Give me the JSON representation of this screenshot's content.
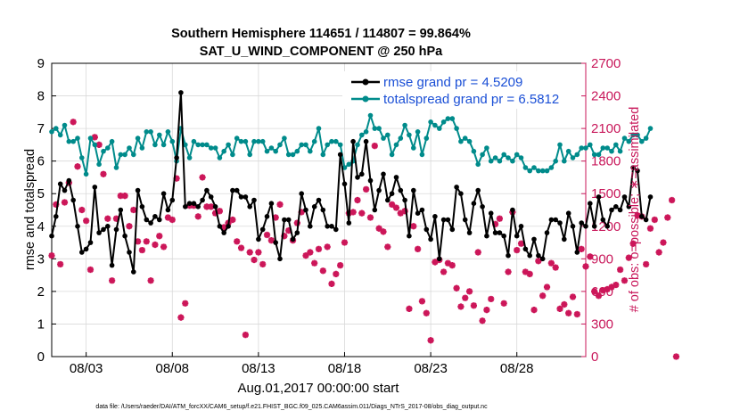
{
  "title_line1": "Southern Hemisphere 114651 / 114807 = 99.864%",
  "title_line2": "SAT_U_WIND_COMPONENT @ 250 hPa",
  "xlabel": "Aug.01,2017 00:00:00 start",
  "ylabel_left": "rmse and totalspread",
  "ylabel_right": "# of obs: o=possible; ∗=assimilated",
  "footer": "data file: /Users/raeder/DAI/ATM_forcXX/CAM6_setup/f.e21.FHIST_BGC.f09_025.CAM6assim.011/Diags_NTrS_2017-08/obs_diag_output.nc",
  "colors": {
    "rmse": "#000000",
    "spread": "#008b8b",
    "obs": "#cc1659",
    "legend_text": "#1a4fd6",
    "right_axis": "#c8175a",
    "grid": "#d9d9d9"
  },
  "chart_data": {
    "type": "line",
    "x_start": "08/01",
    "x_step_days": 0.25,
    "xlim": [
      1.0,
      32.0
    ],
    "x_ticks": [
      3,
      8,
      13,
      18,
      23,
      28
    ],
    "x_tick_labels": [
      "08/03",
      "08/08",
      "08/13",
      "08/18",
      "08/23",
      "08/28"
    ],
    "ylim_left": [
      0,
      9
    ],
    "y_ticks_left": [
      0,
      1,
      2,
      3,
      4,
      5,
      6,
      7,
      8,
      9
    ],
    "ylim_right": [
      0,
      2700
    ],
    "y_ticks_right": [
      0,
      300,
      600,
      900,
      1200,
      1500,
      1800,
      2100,
      2400,
      2700
    ],
    "grid": true,
    "legend_placement": "top-right",
    "series": [
      {
        "name": "rmse grand pr = 4.5209",
        "axis": "left",
        "marker": "filled-circle",
        "values": [
          3.7,
          4.3,
          5.3,
          5.1,
          5.4,
          4.8,
          4.0,
          3.2,
          3.3,
          3.5,
          5.2,
          3.8,
          3.9,
          4.0,
          2.8,
          3.9,
          4.5,
          3.7,
          3.2,
          2.6,
          5.1,
          4.6,
          4.2,
          4.1,
          4.3,
          4.2,
          5.0,
          4.5,
          4.8,
          6.1,
          8.1,
          4.6,
          4.7,
          4.7,
          4.6,
          4.8,
          5.1,
          4.9,
          4.6,
          4.0,
          3.8,
          4.0,
          5.1,
          5.1,
          4.9,
          4.9,
          4.6,
          4.8,
          3.6,
          3.9,
          4.3,
          4.7,
          3.5,
          3.0,
          4.2,
          4.2,
          3.6,
          3.8,
          5.0,
          4.5,
          4.0,
          4.6,
          4.8,
          4.5,
          4.0,
          4.0,
          3.9,
          6.2,
          5.3,
          4.1,
          6.6,
          5.5,
          5.6,
          6.6,
          5.4,
          4.5,
          5.1,
          5.6,
          4.8,
          5.0,
          5.5,
          5.1,
          4.8,
          3.7,
          5.1,
          4.4,
          4.5,
          3.9,
          3.6,
          4.3,
          3.0,
          4.2,
          4.2,
          3.9,
          5.2,
          5.0,
          4.2,
          3.8,
          4.7,
          5.1,
          4.6,
          3.7,
          4.4,
          3.8,
          3.8,
          3.7,
          3.1,
          4.5,
          3.7,
          4.0,
          3.3,
          3.1,
          3.6,
          3.1,
          3.0,
          3.8,
          4.2,
          4.2,
          4.1,
          3.6,
          4.4,
          4.0,
          3.2,
          4.1,
          4.0,
          4.7,
          4.0,
          4.9,
          4.2,
          4.0,
          4.5,
          4.6,
          4.5,
          4.9,
          4.6,
          5.8,
          5.7,
          4.3,
          4.2,
          4.9
        ]
      },
      {
        "name": "totalspread grand pr = 6.5812",
        "axis": "left",
        "marker": "filled-circle",
        "values": [
          6.9,
          7.0,
          6.8,
          7.1,
          6.6,
          6.6,
          6.7,
          6.1,
          5.6,
          6.7,
          6.5,
          5.9,
          6.3,
          6.4,
          6.6,
          5.8,
          6.2,
          6.2,
          6.4,
          6.2,
          6.7,
          6.4,
          6.9,
          6.9,
          6.5,
          6.8,
          6.5,
          6.9,
          6.6,
          6.0,
          7.0,
          6.5,
          6.1,
          6.6,
          6.5,
          6.5,
          6.5,
          6.4,
          6.4,
          6.1,
          6.3,
          6.5,
          6.2,
          6.7,
          6.6,
          6.6,
          6.2,
          6.6,
          6.6,
          6.6,
          6.3,
          6.4,
          6.3,
          6.5,
          6.7,
          6.2,
          6.2,
          6.3,
          6.5,
          6.5,
          6.3,
          6.6,
          7.0,
          6.2,
          6.5,
          6.6,
          6.6,
          6.5,
          5.8,
          5.9,
          6.0,
          6.5,
          6.8,
          6.9,
          7.4,
          7.0,
          7.0,
          6.7,
          6.8,
          6.2,
          6.5,
          6.7,
          7.1,
          6.8,
          6.4,
          6.9,
          6.2,
          6.7,
          7.2,
          7.1,
          7.0,
          7.2,
          7.3,
          7.3,
          7.0,
          6.6,
          6.7,
          6.6,
          6.3,
          5.9,
          6.2,
          6.4,
          6.0,
          6.1,
          6.0,
          6.2,
          6.1,
          6.0,
          6.2,
          6.1,
          5.8,
          5.7,
          5.8,
          5.7,
          5.7,
          5.7,
          5.8,
          6.0,
          6.5,
          6.0,
          6.3,
          6.1,
          6.2,
          6.4,
          6.4,
          6.5,
          6.2,
          6.2,
          6.4,
          6.4,
          6.3,
          6.5,
          6.3,
          6.7,
          6.6,
          6.8,
          6.8,
          6.6,
          6.7,
          7.0
        ]
      },
      {
        "name": "# of obs assimilated",
        "axis": "right",
        "marker": "asterisk",
        "values": [
          930,
          1400,
          850,
          1420,
          1600,
          2160,
          1750,
          1350,
          1250,
          800,
          2020,
          1950,
          1680,
          1270,
          700,
          1270,
          1480,
          1480,
          1200,
          1350,
          1060,
          980,
          1060,
          700,
          1030,
          1110,
          1010,
          1280,
          1260,
          1640,
          360,
          490,
          1390,
          1390,
          1290,
          1650,
          1380,
          1380,
          1320,
          1340,
          1190,
          1230,
          1260,
          1060,
          1000,
          200,
          960,
          890,
          960,
          850,
          1120,
          1070,
          1280,
          1400,
          1110,
          1160,
          1070,
          1230,
          1330,
          930,
          960,
          860,
          990,
          790,
          1010,
          670,
          760,
          840,
          1050,
          1320,
          1330,
          1440,
          1320,
          1540,
          1280,
          1940,
          1180,
          1150,
          1010,
          1400,
          1370,
          1320,
          1340,
          440,
          1200,
          990,
          510,
          400,
          150,
          870,
          890,
          780,
          860,
          840,
          630,
          460,
          540,
          600,
          470,
          960,
          330,
          430,
          530,
          1220,
          1270,
          490,
          780,
          1330,
          980,
          1040,
          780,
          760,
          430,
          880,
          560,
          640,
          860,
          820,
          440,
          480,
          400,
          550,
          390,
          990,
          830,
          920,
          600,
          560,
          610,
          620,
          640,
          660,
          800,
          700,
          910,
          1040,
          1300,
          1290,
          850,
          1180,
          1260,
          960,
          1050,
          1280,
          1440,
          0
        ]
      }
    ]
  }
}
